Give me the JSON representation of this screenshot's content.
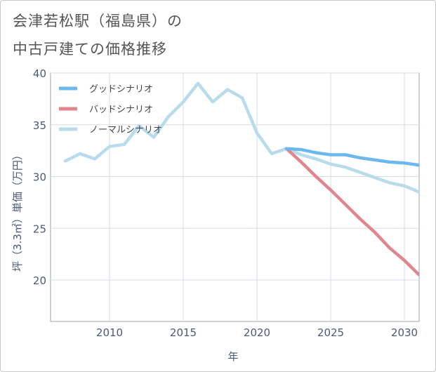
{
  "title_line1": "会津若松駅（福島県）の",
  "title_line2": "中古戸建ての価格推移",
  "chart_data": {
    "type": "line",
    "title": "会津若松駅（福島県）の中古戸建ての価格推移",
    "xlabel": "年",
    "ylabel": "坪（3.3㎡）単価（万円）",
    "xlim": [
      2006,
      2031
    ],
    "ylim": [
      16,
      40
    ],
    "xticks": [
      2010,
      2015,
      2020,
      2025,
      2030
    ],
    "yticks": [
      20,
      25,
      30,
      35,
      40
    ],
    "legend_position": "top-left",
    "series": [
      {
        "name": "グッドシナリオ",
        "color": "#6bb8ee",
        "x": [
          2022,
          2023,
          2024,
          2025,
          2026,
          2027,
          2028,
          2029,
          2030,
          2031
        ],
        "values": [
          32.7,
          32.6,
          32.3,
          32.1,
          32.1,
          31.8,
          31.6,
          31.4,
          31.3,
          31.1
        ]
      },
      {
        "name": "バッドシナリオ",
        "color": "#e0868e",
        "x": [
          2022,
          2023,
          2024,
          2025,
          2026,
          2027,
          2028,
          2029,
          2030,
          2031
        ],
        "values": [
          32.7,
          31.4,
          30.0,
          28.7,
          27.3,
          25.9,
          24.6,
          23.1,
          21.9,
          20.5
        ]
      },
      {
        "name": "ノーマルシナリオ",
        "color": "#b8dceb",
        "x": [
          2007,
          2008,
          2009,
          2010,
          2011,
          2012,
          2013,
          2014,
          2015,
          2016,
          2017,
          2018,
          2019,
          2020,
          2021,
          2022,
          2023,
          2024,
          2025,
          2026,
          2027,
          2028,
          2029,
          2030,
          2031
        ],
        "values": [
          31.5,
          32.2,
          31.7,
          32.9,
          33.1,
          34.9,
          33.8,
          35.8,
          37.2,
          39.0,
          37.2,
          38.4,
          37.6,
          34.2,
          32.2,
          32.7,
          32.1,
          31.7,
          31.2,
          30.9,
          30.4,
          29.9,
          29.4,
          29.1,
          28.5
        ]
      }
    ]
  }
}
